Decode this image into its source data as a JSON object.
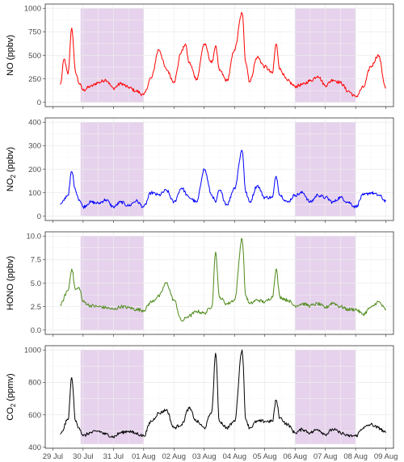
{
  "colors": {
    "shade": "#e6d2ec",
    "grid": "#ebebeb",
    "border": "#333333"
  },
  "chart_data": [
    {
      "type": "line",
      "ylabel": "NO (ppbv)",
      "ylabel_main": "NO",
      "ylabel_sub": "",
      "ylabel_unit": " (ppbv)",
      "ylim": [
        0,
        1000
      ],
      "yticks": [
        0,
        250,
        500,
        750,
        1000
      ],
      "ytick_labels": [
        "0",
        "250",
        "500",
        "750",
        "1000"
      ],
      "color": "#ff0000",
      "shaded_ranges": [
        [
          "29 Jul 22:00",
          "01 Aug 00:00"
        ],
        [
          "06 Aug 00:00",
          "08 Aug 00:00"
        ]
      ],
      "series": [
        {
          "x": [
            "29 Jul 06:00",
            "29 Jul 09:00",
            "29 Jul 12:00",
            "29 Jul 15:00",
            "29 Jul 18:00",
            "29 Jul 21:00",
            "30 Jul 00:00",
            "30 Jul 06:00",
            "30 Jul 12:00",
            "30 Jul 18:00",
            "31 Jul 00:00",
            "31 Jul 06:00",
            "31 Jul 12:00",
            "31 Jul 18:00",
            "01 Aug 00:00",
            "01 Aug 06:00",
            "01 Aug 12:00",
            "01 Aug 18:00",
            "02 Aug 00:00",
            "02 Aug 06:00",
            "02 Aug 09:00",
            "02 Aug 12:00",
            "02 Aug 18:00",
            "03 Aug 00:00",
            "03 Aug 06:00",
            "03 Aug 09:00",
            "03 Aug 12:00",
            "03 Aug 18:00",
            "04 Aug 00:00",
            "04 Aug 06:00",
            "04 Aug 09:00",
            "04 Aug 12:00",
            "04 Aug 18:00",
            "05 Aug 00:00",
            "05 Aug 06:00",
            "05 Aug 09:00",
            "05 Aug 12:00",
            "05 Aug 18:00",
            "06 Aug 00:00",
            "06 Aug 06:00",
            "06 Aug 12:00",
            "06 Aug 18:00",
            "07 Aug 00:00",
            "07 Aug 06:00",
            "07 Aug 12:00",
            "07 Aug 18:00",
            "08 Aug 00:00",
            "08 Aug 06:00",
            "08 Aug 12:00",
            "08 Aug 18:00",
            "09 Aug 00:00"
          ],
          "values": [
            190,
            460,
            300,
            790,
            320,
            200,
            130,
            170,
            210,
            240,
            150,
            200,
            160,
            120,
            80,
            260,
            560,
            350,
            220,
            540,
            620,
            420,
            250,
            620,
            420,
            600,
            340,
            230,
            560,
            950,
            420,
            220,
            480,
            380,
            310,
            620,
            350,
            230,
            170,
            190,
            230,
            280,
            180,
            240,
            210,
            120,
            60,
            160,
            380,
            500,
            150
          ]
        }
      ]
    },
    {
      "type": "line",
      "ylabel": "NO2 (ppbv)",
      "ylabel_main": "NO",
      "ylabel_sub": "2",
      "ylabel_unit": " (ppbv)",
      "ylim": [
        0,
        400
      ],
      "yticks": [
        0,
        100,
        200,
        300,
        400
      ],
      "ytick_labels": [
        "0",
        "100",
        "200",
        "300",
        "400"
      ],
      "color": "#0000ff",
      "shaded_ranges": [
        [
          "29 Jul 22:00",
          "01 Aug 00:00"
        ],
        [
          "06 Aug 00:00",
          "08 Aug 00:00"
        ]
      ],
      "series": [
        {
          "x": [
            "29 Jul 06:00",
            "29 Jul 12:00",
            "29 Jul 15:00",
            "29 Jul 18:00",
            "29 Jul 21:00",
            "30 Jul 00:00",
            "30 Jul 06:00",
            "30 Jul 12:00",
            "30 Jul 18:00",
            "31 Jul 00:00",
            "31 Jul 06:00",
            "31 Jul 12:00",
            "31 Jul 18:00",
            "01 Aug 00:00",
            "01 Aug 06:00",
            "01 Aug 12:00",
            "01 Aug 18:00",
            "02 Aug 00:00",
            "02 Aug 06:00",
            "02 Aug 12:00",
            "02 Aug 18:00",
            "03 Aug 00:00",
            "03 Aug 06:00",
            "03 Aug 09:00",
            "03 Aug 12:00",
            "03 Aug 18:00",
            "04 Aug 00:00",
            "04 Aug 06:00",
            "04 Aug 09:00",
            "04 Aug 12:00",
            "04 Aug 18:00",
            "05 Aug 00:00",
            "05 Aug 06:00",
            "05 Aug 09:00",
            "05 Aug 12:00",
            "05 Aug 18:00",
            "06 Aug 00:00",
            "06 Aug 06:00",
            "06 Aug 12:00",
            "06 Aug 18:00",
            "07 Aug 00:00",
            "07 Aug 06:00",
            "07 Aug 12:00",
            "07 Aug 18:00",
            "08 Aug 00:00",
            "08 Aug 06:00",
            "08 Aug 12:00",
            "08 Aug 18:00",
            "09 Aug 00:00"
          ],
          "values": [
            50,
            90,
            190,
            110,
            70,
            40,
            60,
            55,
            70,
            40,
            60,
            45,
            65,
            40,
            100,
            90,
            110,
            60,
            120,
            80,
            60,
            200,
            90,
            60,
            110,
            50,
            120,
            280,
            100,
            60,
            130,
            80,
            80,
            170,
            90,
            60,
            90,
            100,
            60,
            90,
            80,
            60,
            80,
            60,
            40,
            90,
            100,
            90,
            65
          ]
        }
      ]
    },
    {
      "type": "line",
      "ylabel": "HONO (ppbv)",
      "ylabel_main": "HONO",
      "ylabel_sub": "",
      "ylabel_unit": " (ppbv)",
      "ylim": [
        0,
        10
      ],
      "yticks": [
        0,
        2.5,
        5,
        7.5,
        10
      ],
      "ytick_labels": [
        "0.0",
        "2.5",
        "5.0",
        "7.5",
        "10.0"
      ],
      "color": "#4d8a1a",
      "shaded_ranges": [
        [
          "29 Jul 22:00",
          "01 Aug 00:00"
        ],
        [
          "06 Aug 00:00",
          "08 Aug 00:00"
        ]
      ],
      "series": [
        {
          "x": [
            "29 Jul 06:00",
            "29 Jul 12:00",
            "29 Jul 15:00",
            "29 Jul 18:00",
            "29 Jul 21:00",
            "30 Jul 00:00",
            "30 Jul 06:00",
            "30 Jul 12:00",
            "30 Jul 18:00",
            "31 Jul 00:00",
            "31 Jul 06:00",
            "31 Jul 12:00",
            "31 Jul 18:00",
            "01 Aug 00:00",
            "01 Aug 06:00",
            "01 Aug 12:00",
            "01 Aug 18:00",
            "02 Aug 00:00",
            "02 Aug 06:00",
            "02 Aug 12:00",
            "02 Aug 18:00",
            "03 Aug 00:00",
            "03 Aug 06:00",
            "03 Aug 09:00",
            "03 Aug 12:00",
            "03 Aug 18:00",
            "04 Aug 00:00",
            "04 Aug 06:00",
            "04 Aug 09:00",
            "04 Aug 12:00",
            "04 Aug 18:00",
            "05 Aug 00:00",
            "05 Aug 06:00",
            "05 Aug 09:00",
            "05 Aug 12:00",
            "05 Aug 18:00",
            "06 Aug 00:00",
            "06 Aug 06:00",
            "06 Aug 12:00",
            "06 Aug 18:00",
            "07 Aug 00:00",
            "07 Aug 06:00",
            "07 Aug 12:00",
            "07 Aug 18:00",
            "08 Aug 00:00",
            "08 Aug 06:00",
            "08 Aug 12:00",
            "08 Aug 18:00",
            "09 Aug 00:00"
          ],
          "values": [
            2.7,
            4.2,
            6.5,
            4.3,
            4.5,
            3.0,
            2.6,
            2.5,
            2.4,
            2.2,
            2.5,
            2.4,
            2.2,
            2.1,
            3.0,
            3.6,
            5.0,
            3.2,
            1.0,
            1.5,
            2.0,
            1.8,
            2.5,
            8.3,
            3.5,
            2.8,
            3.2,
            9.7,
            3.6,
            2.8,
            3.2,
            3.0,
            3.5,
            6.5,
            3.5,
            3.2,
            2.6,
            2.8,
            2.6,
            2.8,
            2.4,
            2.9,
            2.5,
            2.2,
            2.2,
            1.7,
            2.4,
            3.0,
            2.2
          ]
        }
      ]
    },
    {
      "type": "line",
      "ylabel": "CO2 (ppmv)",
      "ylabel_main": "CO",
      "ylabel_sub": "2",
      "ylabel_unit": " (ppmv)",
      "ylim": [
        420,
        1000
      ],
      "yticks": [
        400,
        600,
        800,
        1000
      ],
      "ytick_labels": [
        "400",
        "600",
        "800",
        "1000"
      ],
      "color": "#000000",
      "shaded_ranges": [
        [
          "29 Jul 22:00",
          "01 Aug 00:00"
        ],
        [
          "06 Aug 00:00",
          "08 Aug 00:00"
        ]
      ],
      "series": [
        {
          "x": [
            "29 Jul 06:00",
            "29 Jul 12:00",
            "29 Jul 15:00",
            "29 Jul 18:00",
            "29 Jul 21:00",
            "30 Jul 00:00",
            "30 Jul 06:00",
            "30 Jul 12:00",
            "30 Jul 18:00",
            "31 Jul 00:00",
            "31 Jul 06:00",
            "31 Jul 12:00",
            "31 Jul 18:00",
            "01 Aug 00:00",
            "01 Aug 06:00",
            "01 Aug 12:00",
            "01 Aug 18:00",
            "02 Aug 00:00",
            "02 Aug 06:00",
            "02 Aug 12:00",
            "02 Aug 18:00",
            "03 Aug 00:00",
            "03 Aug 06:00",
            "03 Aug 09:00",
            "03 Aug 12:00",
            "03 Aug 18:00",
            "04 Aug 00:00",
            "04 Aug 06:00",
            "04 Aug 09:00",
            "04 Aug 12:00",
            "04 Aug 18:00",
            "05 Aug 00:00",
            "05 Aug 06:00",
            "05 Aug 09:00",
            "05 Aug 12:00",
            "05 Aug 18:00",
            "06 Aug 00:00",
            "06 Aug 06:00",
            "06 Aug 12:00",
            "06 Aug 18:00",
            "07 Aug 00:00",
            "07 Aug 06:00",
            "07 Aug 12:00",
            "07 Aug 18:00",
            "08 Aug 00:00",
            "08 Aug 06:00",
            "08 Aug 12:00",
            "08 Aug 18:00",
            "09 Aug 00:00"
          ],
          "values": [
            480,
            570,
            830,
            560,
            520,
            470,
            490,
            500,
            480,
            465,
            490,
            500,
            485,
            470,
            560,
            610,
            630,
            520,
            540,
            640,
            560,
            520,
            620,
            980,
            560,
            520,
            560,
            1000,
            570,
            520,
            560,
            560,
            560,
            690,
            580,
            540,
            490,
            510,
            490,
            510,
            480,
            510,
            490,
            470,
            470,
            520,
            540,
            520,
            490
          ]
        }
      ]
    }
  ],
  "xaxis": {
    "ticks": [
      "29 Jul",
      "30 Jul",
      "31 Jul",
      "01 Aug",
      "02 Aug",
      "03 Aug",
      "04 Aug",
      "05 Aug",
      "06 Aug",
      "07 Aug",
      "08 Aug",
      "09 Aug"
    ]
  }
}
